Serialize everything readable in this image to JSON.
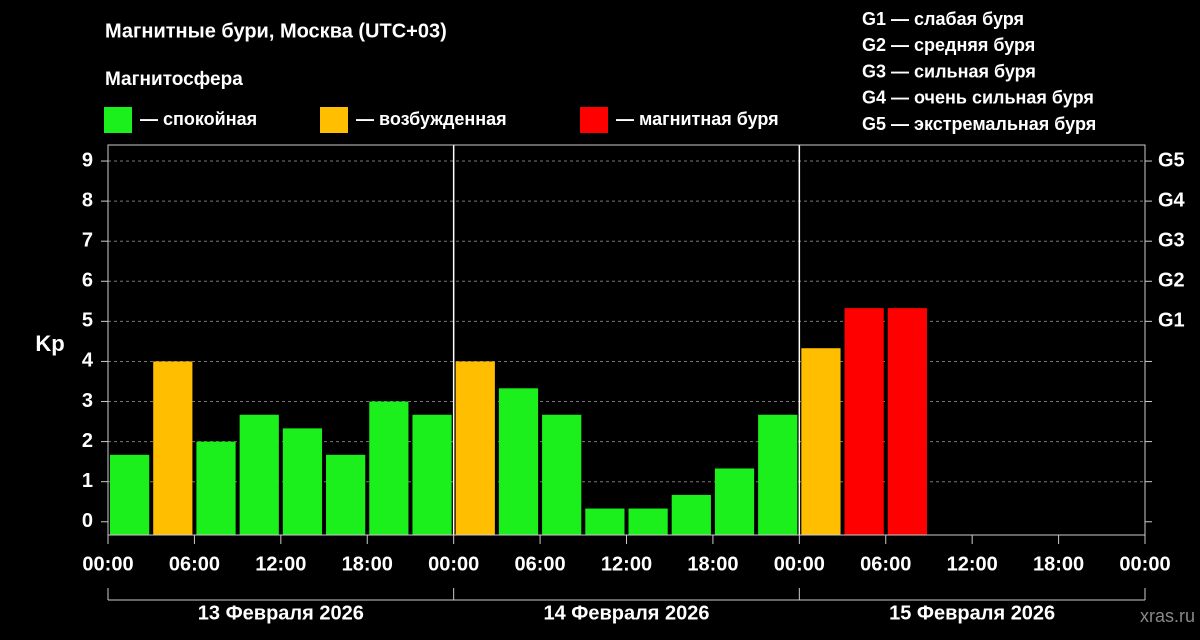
{
  "chart_data": {
    "type": "bar",
    "title": "Магнитные бури, Москва (UTC+03)",
    "subtitle": "Магнитосфера",
    "ylabel": "Kp",
    "watermark": "xras.ru",
    "storm_levels": [
      "G1 — слабая буря",
      "G2 — средняя буря",
      "G3 — сильная буря",
      "G4 — очень сильная буря",
      "G5 — экстремальная буря"
    ],
    "day_labels": [
      "13 Февраля 2026",
      "14 Февраля 2026",
      "15 Февраля 2026"
    ],
    "bar_width": 3,
    "x": [
      0,
      3,
      6,
      9,
      12,
      15,
      18,
      21,
      24,
      27,
      30,
      33,
      36,
      39,
      42,
      45,
      48,
      51,
      54
    ],
    "series": [
      {
        "name": "— спокойная",
        "color": "#1cf01c",
        "values": [
          1.67,
          null,
          2,
          2.67,
          2.33,
          1.67,
          3,
          2.67,
          null,
          3.33,
          2.67,
          0.33,
          0.33,
          0.67,
          1.33,
          2.67,
          null,
          null,
          null
        ]
      },
      {
        "name": "— возбужденная",
        "color": "#ffbf00",
        "values": [
          null,
          4,
          null,
          null,
          null,
          null,
          null,
          null,
          4,
          null,
          null,
          null,
          null,
          null,
          null,
          null,
          4.33,
          null,
          null
        ]
      },
      {
        "name": "— магнитная буря",
        "color": "#ff0000",
        "values": [
          null,
          null,
          null,
          null,
          null,
          null,
          null,
          null,
          null,
          null,
          null,
          null,
          null,
          null,
          null,
          null,
          null,
          5.33,
          5.33
        ]
      }
    ],
    "xlim": [
      0,
      72
    ],
    "xticks": [
      {
        "value": 0,
        "label": "00:00"
      },
      {
        "value": 6,
        "label": "06:00"
      },
      {
        "value": 12,
        "label": "12:00"
      },
      {
        "value": 18,
        "label": "18:00"
      },
      {
        "value": 24,
        "label": "00:00"
      },
      {
        "value": 30,
        "label": "06:00"
      },
      {
        "value": 36,
        "label": "12:00"
      },
      {
        "value": 42,
        "label": "18:00"
      },
      {
        "value": 48,
        "label": "00:00"
      },
      {
        "value": 54,
        "label": "06:00"
      },
      {
        "value": 60,
        "label": "12:00"
      },
      {
        "value": 66,
        "label": "18:00"
      },
      {
        "value": 72,
        "label": "00:00"
      }
    ],
    "ylim": [
      -0.33,
      9.4
    ],
    "yticks": [
      0,
      1,
      2,
      3,
      4,
      5,
      6,
      7,
      8,
      9
    ],
    "y2lim": [
      -0.33,
      9.4
    ],
    "y2ticks": [
      {
        "value": 5,
        "label": "G1"
      },
      {
        "value": 6,
        "label": "G2"
      },
      {
        "value": 7,
        "label": "G3"
      },
      {
        "value": 8,
        "label": "G4"
      },
      {
        "value": 9,
        "label": "G5"
      }
    ],
    "grid": true
  }
}
